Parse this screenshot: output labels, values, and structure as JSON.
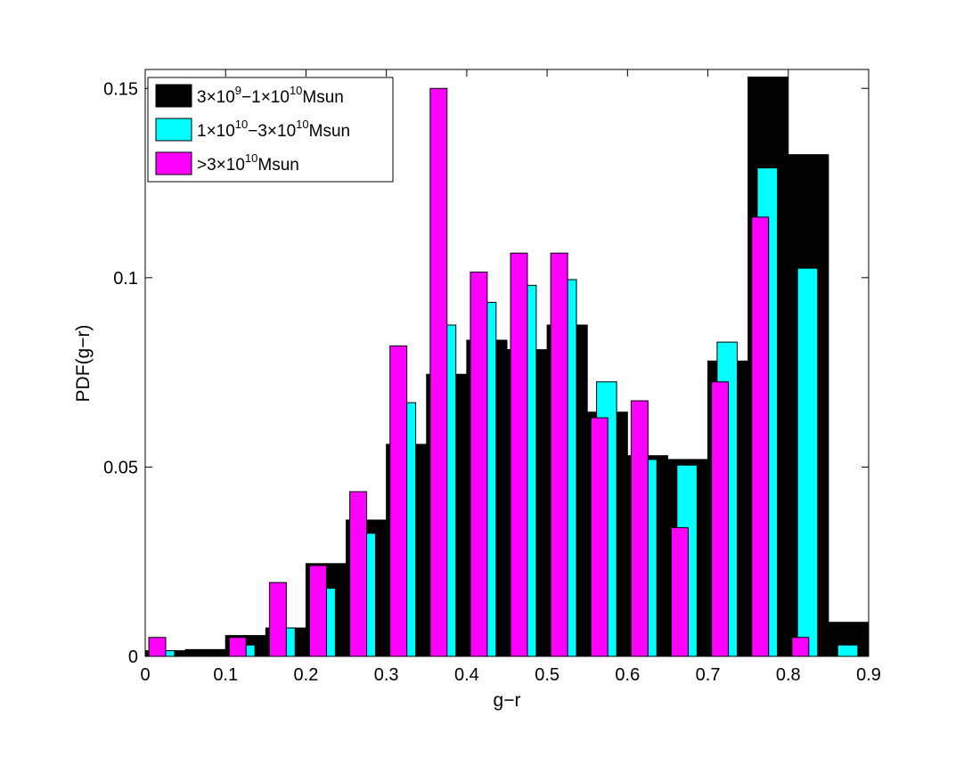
{
  "chart_data": {
    "type": "bar",
    "title": "",
    "xlabel": "g−r",
    "ylabel": "PDF(g−r)",
    "xlim": [
      0,
      0.9
    ],
    "ylim": [
      0,
      0.155
    ],
    "xticks": [
      "0",
      "0.1",
      "0.2",
      "0.3",
      "0.4",
      "0.5",
      "0.6",
      "0.7",
      "0.8",
      "0.9"
    ],
    "yticks": [
      "0",
      "0.05",
      "0.1",
      "0.15"
    ],
    "bin_width": 0.05,
    "x": [
      0.025,
      0.075,
      0.125,
      0.175,
      0.225,
      0.275,
      0.325,
      0.375,
      0.425,
      0.475,
      0.525,
      0.575,
      0.625,
      0.675,
      0.725,
      0.775,
      0.825,
      0.875
    ],
    "legend_position": "top-left",
    "grid": false,
    "series": [
      {
        "name": "3×10^9−1×10^10Msun",
        "color": "#000000",
        "values": [
          0.0015,
          0.0018,
          0.0055,
          0.0075,
          0.0245,
          0.036,
          0.056,
          0.0745,
          0.0835,
          0.081,
          0.0875,
          0.0645,
          0.053,
          0.052,
          0.078,
          0.153,
          0.1325,
          0.009
        ]
      },
      {
        "name": "1×10^10−3×10^10Msun",
        "color": "#00ffff",
        "values": [
          0.0015,
          0.0,
          0.003,
          0.0075,
          0.018,
          0.0325,
          0.067,
          0.0875,
          0.0935,
          0.098,
          0.0995,
          0.0725,
          0.052,
          0.0505,
          0.083,
          0.129,
          0.1025,
          0.003
        ]
      },
      {
        "name": ">3×10^10Msun",
        "color": "#ff00ff",
        "values": [
          0.005,
          0.0,
          0.005,
          0.0195,
          0.024,
          0.0435,
          0.082,
          0.15,
          0.1015,
          0.1065,
          0.1065,
          0.063,
          0.0675,
          0.034,
          0.0725,
          0.116,
          0.005,
          0.0
        ]
      }
    ]
  },
  "legend": [
    {
      "pre": "3×10",
      "sup1": "9",
      "mid": "−1×10",
      "sup2": "10",
      "post": "Msun"
    },
    {
      "pre": "1×10",
      "sup1": "10",
      "mid": "−3×10",
      "sup2": "10",
      "post": "Msun"
    },
    {
      "pre": ">3×10",
      "sup1": "10",
      "mid": "",
      "sup2": "",
      "post": "Msun"
    }
  ]
}
